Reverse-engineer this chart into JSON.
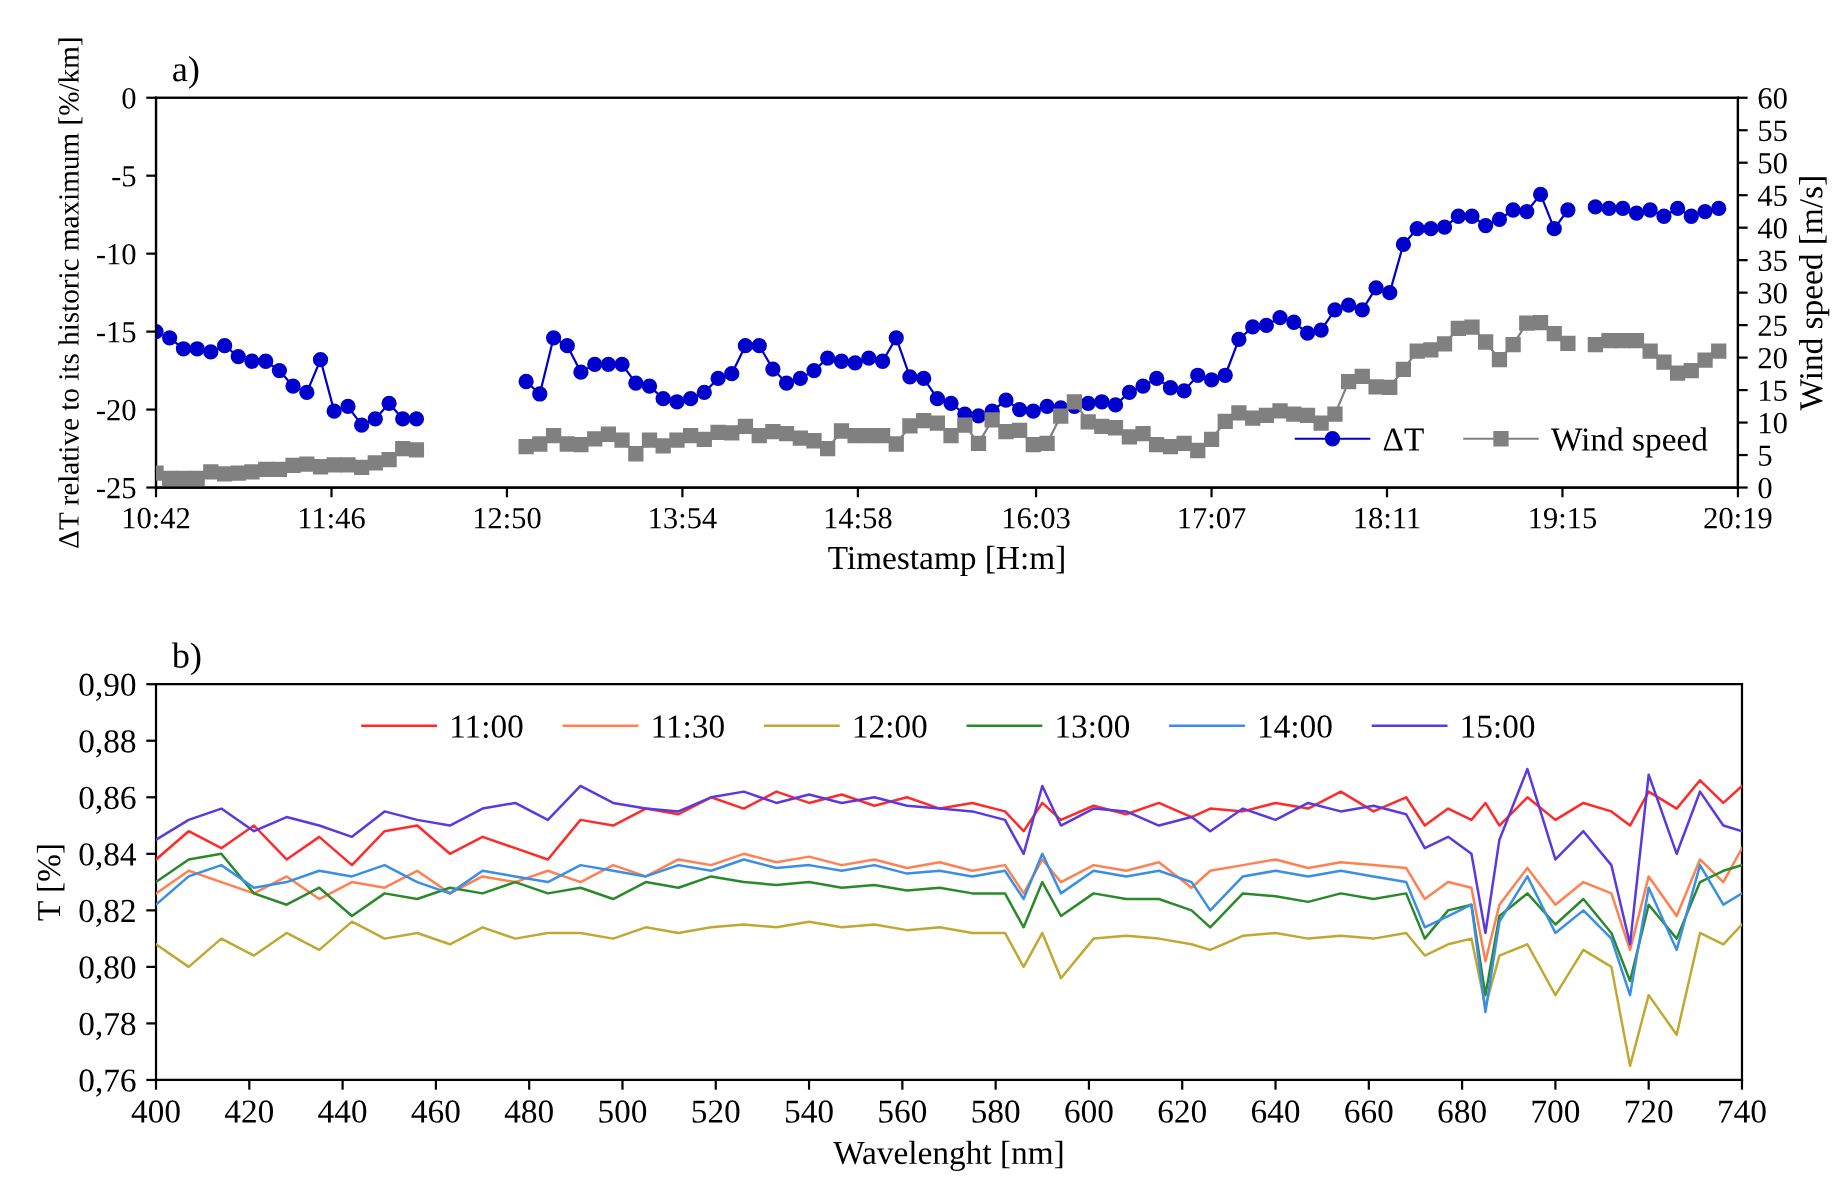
{
  "chart_data": [
    {
      "type": "line",
      "title": "a)",
      "xlabel": "Timestamp [H:m]",
      "ylabel": "ΔT relative to its historic maximum [%/km]",
      "y2label": "Wind speed [m/s]",
      "x": [
        10.7,
        10.783,
        10.867,
        10.95,
        11.033,
        11.117,
        11.2,
        11.283,
        11.367,
        11.45,
        11.533,
        11.617,
        11.7,
        11.783,
        11.867,
        11.95,
        12.033,
        12.117,
        12.2,
        12.283,
        12.367,
        12.45,
        12.533,
        12.617,
        12.7,
        12.783,
        12.867,
        12.95,
        13.033,
        13.117,
        13.2,
        13.283,
        13.367,
        13.45,
        13.533,
        13.617,
        13.7,
        13.783,
        13.867,
        13.95,
        14.033,
        14.117,
        14.2,
        14.283,
        14.367,
        14.45,
        14.533,
        14.617,
        14.7,
        14.783,
        14.867,
        14.95,
        15.033,
        15.117,
        15.2,
        15.283,
        15.367,
        15.45,
        15.533,
        15.617,
        15.7,
        15.783,
        15.867,
        15.95,
        16.033,
        16.117,
        16.2,
        16.283,
        16.367,
        16.45,
        16.533,
        16.617,
        16.7,
        16.783,
        16.867,
        16.95,
        17.033,
        17.117,
        17.2,
        17.283,
        17.367,
        17.45,
        17.533,
        17.617,
        17.7,
        17.783,
        17.867,
        17.95,
        18.033,
        18.117,
        18.2,
        18.283,
        18.367,
        18.45,
        18.533,
        18.617,
        18.7,
        18.783,
        18.867,
        18.95,
        19.033,
        19.117,
        19.2,
        19.283,
        19.367,
        19.45,
        19.533,
        19.617,
        19.7,
        19.783,
        19.867,
        19.95,
        20.033,
        20.117,
        20.2
      ],
      "series": [
        {
          "name": "ΔT",
          "color": "#0000cc",
          "marker": "circle",
          "values": [
            -15.0,
            -15.4,
            -16.1,
            -16.1,
            -16.3,
            -15.9,
            -16.6,
            -16.9,
            -16.9,
            -17.5,
            -18.5,
            -18.9,
            -16.8,
            -20.1,
            -19.8,
            -21.0,
            -20.6,
            -19.6,
            -20.6,
            -20.6,
            null,
            null,
            null,
            null,
            null,
            null,
            null,
            -18.2,
            -19.0,
            -15.4,
            -15.9,
            -17.6,
            -17.1,
            -17.1,
            -17.1,
            -18.3,
            -18.5,
            -19.3,
            -19.5,
            -19.3,
            -18.9,
            -18.0,
            -17.7,
            -15.9,
            -15.9,
            -17.4,
            -18.3,
            -18.0,
            -17.5,
            -16.7,
            -16.9,
            -17.0,
            -16.7,
            -16.9,
            -15.4,
            -17.9,
            -18.0,
            -19.3,
            -19.6,
            -20.3,
            -20.4,
            -20.1,
            -19.4,
            -20.0,
            -20.1,
            -19.8,
            -19.9,
            -19.8,
            -19.6,
            -19.5,
            -19.7,
            -18.9,
            -18.5,
            -18.0,
            -18.6,
            -18.8,
            -17.8,
            -18.1,
            -17.8,
            -15.5,
            -14.7,
            -14.6,
            -14.1,
            -14.4,
            -15.1,
            -14.9,
            -13.6,
            -13.3,
            -13.6,
            -12.2,
            -12.5,
            -9.4,
            -8.4,
            -8.4,
            -8.3,
            -7.6,
            -7.6,
            -8.2,
            -7.8,
            -7.2,
            -7.3,
            -6.2,
            -8.4,
            -7.2,
            null,
            -7.0,
            -7.1,
            -7.1,
            -7.4,
            -7.2,
            -7.6,
            -7.1,
            -7.6,
            -7.3,
            -7.1
          ]
        },
        {
          "name": "Wind speed",
          "color": "#808080",
          "marker": "square",
          "axis": "y2",
          "values": [
            2.2,
            1.4,
            1.4,
            1.4,
            2.4,
            2.1,
            2.2,
            2.4,
            2.8,
            2.8,
            3.4,
            3.6,
            3.2,
            3.5,
            3.5,
            3.1,
            3.8,
            4.3,
            6.0,
            5.8,
            null,
            null,
            null,
            null,
            null,
            null,
            null,
            6.3,
            6.7,
            8.0,
            6.7,
            6.6,
            7.5,
            8.2,
            7.3,
            5.2,
            7.3,
            6.4,
            7.3,
            8.0,
            7.4,
            8.5,
            8.4,
            9.4,
            8.0,
            8.6,
            8.3,
            7.6,
            7.2,
            6.0,
            8.7,
            8.0,
            8.0,
            8.0,
            6.7,
            9.5,
            10.3,
            9.9,
            8.0,
            9.6,
            6.8,
            10.4,
            8.6,
            8.8,
            6.6,
            6.8,
            11.0,
            13.2,
            10.1,
            9.4,
            9.2,
            7.8,
            8.3,
            6.6,
            6.3,
            6.8,
            5.7,
            7.4,
            10.2,
            11.5,
            10.7,
            11.1,
            11.8,
            11.3,
            11.1,
            9.9,
            11.3,
            16.3,
            17.1,
            15.5,
            15.4,
            18.2,
            21.0,
            21.2,
            22.1,
            24.5,
            24.7,
            22.4,
            19.7,
            22.0,
            25.3,
            25.4,
            23.7,
            22.2,
            null,
            22.0,
            22.6,
            22.6,
            22.6,
            21.0,
            19.3,
            17.6,
            18.0,
            19.6,
            21.0
          ]
        }
      ],
      "xlim": [
        10.7,
        20.3167
      ],
      "xticks": [
        {
          "value": 10.7,
          "label": "10:42"
        },
        {
          "value": 11.7667,
          "label": "11:46"
        },
        {
          "value": 12.8333,
          "label": "12:50"
        },
        {
          "value": 13.9,
          "label": "13:54"
        },
        {
          "value": 14.9667,
          "label": "14:58"
        },
        {
          "value": 16.05,
          "label": "16:03"
        },
        {
          "value": 17.1167,
          "label": "17:07"
        },
        {
          "value": 18.1833,
          "label": "18:11"
        },
        {
          "value": 19.25,
          "label": "19:15"
        },
        {
          "value": 20.3167,
          "label": "20:19"
        }
      ],
      "ylim": [
        -25,
        0
      ],
      "yticks": [
        -25,
        -20,
        -15,
        -10,
        -5,
        0
      ],
      "y2lim": [
        0,
        60
      ],
      "y2ticks": [
        0,
        5,
        10,
        15,
        20,
        25,
        30,
        35,
        40,
        45,
        50,
        55,
        60
      ],
      "legend": "bottom right"
    },
    {
      "type": "line",
      "title": "b)",
      "xlabel": "Wavelenght [nm]",
      "ylabel": "T [%]",
      "marker": "none",
      "x": [
        400,
        407,
        414,
        421,
        428,
        435,
        442,
        449,
        456,
        463,
        470,
        477,
        484,
        491,
        498,
        505,
        512,
        519,
        526,
        533,
        540,
        547,
        554,
        561,
        568,
        575,
        582,
        586,
        590,
        594,
        601,
        608,
        615,
        622,
        626,
        633,
        640,
        647,
        654,
        661,
        668,
        672,
        677,
        682,
        685,
        688,
        694,
        700,
        706,
        712,
        716,
        720,
        726,
        731,
        736,
        740
      ],
      "series": [
        {
          "name": "11:00",
          "color": "#ff2a2a",
          "values": [
            0.838,
            0.848,
            0.842,
            0.85,
            0.838,
            0.846,
            0.836,
            0.848,
            0.85,
            0.84,
            0.846,
            0.842,
            0.838,
            0.852,
            0.85,
            0.856,
            0.854,
            0.86,
            0.856,
            0.862,
            0.858,
            0.861,
            0.857,
            0.86,
            0.856,
            0.858,
            0.855,
            0.848,
            0.858,
            0.852,
            0.857,
            0.854,
            0.858,
            0.853,
            0.856,
            0.855,
            0.858,
            0.856,
            0.862,
            0.855,
            0.86,
            0.85,
            0.856,
            0.852,
            0.858,
            0.85,
            0.86,
            0.852,
            0.858,
            0.855,
            0.85,
            0.862,
            0.856,
            0.866,
            0.858,
            0.864
          ]
        },
        {
          "name": "11:30",
          "color": "#ff8050",
          "values": [
            0.826,
            0.834,
            0.83,
            0.826,
            0.832,
            0.824,
            0.83,
            0.828,
            0.834,
            0.826,
            0.832,
            0.83,
            0.834,
            0.83,
            0.836,
            0.832,
            0.838,
            0.836,
            0.84,
            0.837,
            0.839,
            0.836,
            0.838,
            0.835,
            0.837,
            0.834,
            0.836,
            0.826,
            0.838,
            0.83,
            0.836,
            0.834,
            0.837,
            0.828,
            0.834,
            0.836,
            0.838,
            0.835,
            0.837,
            0.836,
            0.835,
            0.824,
            0.83,
            0.828,
            0.802,
            0.822,
            0.835,
            0.822,
            0.83,
            0.826,
            0.806,
            0.832,
            0.818,
            0.838,
            0.83,
            0.842
          ]
        },
        {
          "name": "12:00",
          "color": "#c0a832",
          "values": [
            0.808,
            0.8,
            0.81,
            0.804,
            0.812,
            0.806,
            0.816,
            0.81,
            0.812,
            0.808,
            0.814,
            0.81,
            0.812,
            0.812,
            0.81,
            0.814,
            0.812,
            0.814,
            0.815,
            0.814,
            0.816,
            0.814,
            0.815,
            0.813,
            0.814,
            0.812,
            0.812,
            0.8,
            0.812,
            0.796,
            0.81,
            0.811,
            0.81,
            0.808,
            0.806,
            0.811,
            0.812,
            0.81,
            0.811,
            0.81,
            0.812,
            0.804,
            0.808,
            0.81,
            0.786,
            0.804,
            0.808,
            0.79,
            0.806,
            0.8,
            0.765,
            0.79,
            0.776,
            0.812,
            0.808,
            0.815
          ]
        },
        {
          "name": "13:00",
          "color": "#2a8a2a",
          "values": [
            0.83,
            0.838,
            0.84,
            0.826,
            0.822,
            0.828,
            0.818,
            0.826,
            0.824,
            0.828,
            0.826,
            0.83,
            0.826,
            0.828,
            0.824,
            0.83,
            0.828,
            0.832,
            0.83,
            0.829,
            0.83,
            0.828,
            0.829,
            0.827,
            0.828,
            0.826,
            0.826,
            0.814,
            0.83,
            0.818,
            0.826,
            0.824,
            0.824,
            0.82,
            0.814,
            0.826,
            0.825,
            0.823,
            0.826,
            0.824,
            0.826,
            0.81,
            0.82,
            0.822,
            0.79,
            0.818,
            0.826,
            0.815,
            0.824,
            0.812,
            0.795,
            0.822,
            0.81,
            0.83,
            0.834,
            0.836
          ]
        },
        {
          "name": "14:00",
          "color": "#3a8ee6",
          "values": [
            0.822,
            0.832,
            0.836,
            0.828,
            0.83,
            0.834,
            0.832,
            0.836,
            0.83,
            0.826,
            0.834,
            0.832,
            0.83,
            0.836,
            0.834,
            0.832,
            0.836,
            0.834,
            0.838,
            0.835,
            0.836,
            0.834,
            0.836,
            0.833,
            0.834,
            0.832,
            0.834,
            0.824,
            0.84,
            0.826,
            0.834,
            0.832,
            0.834,
            0.83,
            0.82,
            0.832,
            0.834,
            0.832,
            0.834,
            0.832,
            0.83,
            0.814,
            0.818,
            0.822,
            0.784,
            0.816,
            0.832,
            0.812,
            0.82,
            0.81,
            0.79,
            0.828,
            0.806,
            0.836,
            0.822,
            0.826
          ]
        },
        {
          "name": "15:00",
          "color": "#5a3ae0",
          "values": [
            0.845,
            0.852,
            0.856,
            0.848,
            0.853,
            0.85,
            0.846,
            0.855,
            0.852,
            0.85,
            0.856,
            0.858,
            0.852,
            0.864,
            0.858,
            0.856,
            0.855,
            0.86,
            0.862,
            0.858,
            0.861,
            0.858,
            0.86,
            0.857,
            0.856,
            0.855,
            0.852,
            0.84,
            0.864,
            0.85,
            0.856,
            0.855,
            0.85,
            0.853,
            0.848,
            0.856,
            0.852,
            0.858,
            0.855,
            0.857,
            0.854,
            0.842,
            0.846,
            0.84,
            0.812,
            0.845,
            0.87,
            0.838,
            0.848,
            0.836,
            0.808,
            0.868,
            0.84,
            0.862,
            0.85,
            0.848
          ]
        }
      ],
      "xlim": [
        400,
        740
      ],
      "xticks": [
        400,
        420,
        440,
        460,
        480,
        500,
        520,
        540,
        560,
        580,
        600,
        620,
        640,
        660,
        680,
        700,
        720,
        740
      ],
      "ylim": [
        0.76,
        0.9
      ],
      "yticks": [
        {
          "value": 0.76,
          "label": "0,76"
        },
        {
          "value": 0.78,
          "label": "0,78"
        },
        {
          "value": 0.8,
          "label": "0,80"
        },
        {
          "value": 0.82,
          "label": "0,82"
        },
        {
          "value": 0.84,
          "label": "0,84"
        },
        {
          "value": 0.86,
          "label": "0,86"
        },
        {
          "value": 0.88,
          "label": "0,88"
        },
        {
          "value": 0.9,
          "label": "0,90"
        }
      ],
      "legend": "top"
    }
  ]
}
